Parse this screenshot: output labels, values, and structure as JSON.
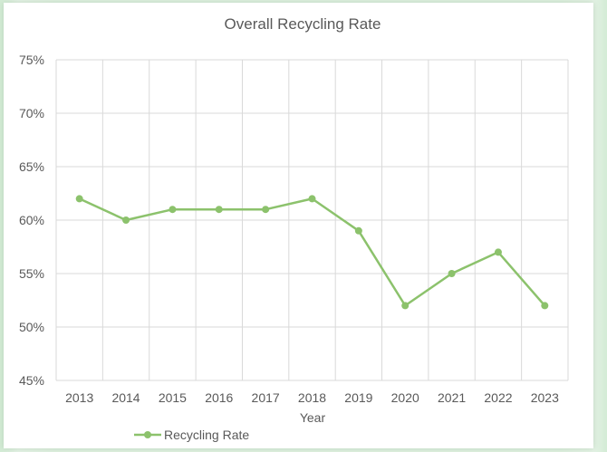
{
  "chart_data": {
    "type": "line",
    "title": "Overall Recycling Rate",
    "xlabel": "Year",
    "ylabel": "",
    "categories": [
      "2013",
      "2014",
      "2015",
      "2016",
      "2017",
      "2018",
      "2019",
      "2020",
      "2021",
      "2022",
      "2023"
    ],
    "series": [
      {
        "name": "Recycling Rate",
        "values": [
          62,
          60,
          61,
          61,
          61,
          62,
          59,
          52,
          55,
          57,
          52
        ],
        "color": "#8cc26c"
      }
    ],
    "ylim": [
      45,
      75
    ],
    "yticks": [
      {
        "value": 75,
        "label": "75%"
      },
      {
        "value": 70,
        "label": "70%"
      },
      {
        "value": 65,
        "label": "65%"
      },
      {
        "value": 60,
        "label": "60%"
      },
      {
        "value": 55,
        "label": "55%"
      },
      {
        "value": 50,
        "label": "50%"
      },
      {
        "value": 45,
        "label": "45%"
      }
    ],
    "grid": true,
    "legend": "bottom-left"
  },
  "colors": {
    "line": "#8cc26c",
    "grid": "#d9d9d9",
    "text": "#595959"
  }
}
